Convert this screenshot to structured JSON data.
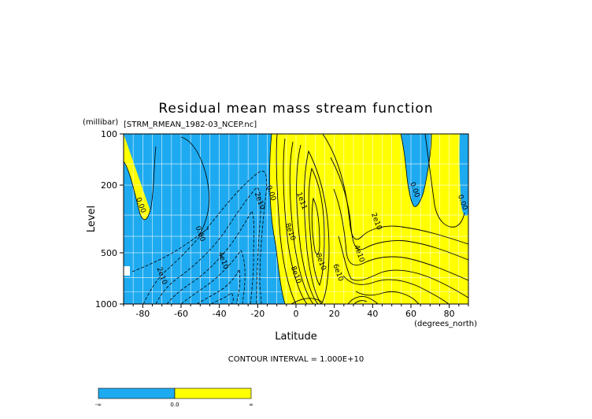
{
  "chart_data": {
    "type": "contour",
    "title": "Residual mean mass stream function",
    "file_label": "[STRM_RMEAN_1982-03_NCEP.nc]",
    "y_units": "(millibar)",
    "x_units": "(degrees_north)",
    "xlabel": "Latitude",
    "ylabel": "Level",
    "xlim": [
      -90,
      90
    ],
    "ylim": [
      1000,
      100
    ],
    "y_scale": "log",
    "x_ticks": [
      -80,
      -60,
      -40,
      -20,
      0,
      20,
      40,
      60,
      80
    ],
    "x_tick_labels": [
      "-80",
      "-60",
      "-40",
      "-20",
      "0",
      "20",
      "40",
      "60",
      "80"
    ],
    "y_ticks": [
      100,
      200,
      500,
      1000
    ],
    "y_tick_labels": [
      "100",
      "200",
      "500",
      "1000"
    ],
    "grid": true,
    "contour_interval_text": "CONTOUR INTERVAL = 1.000E+10",
    "contour_labels": [
      {
        "text": "0.00",
        "lat": -82,
        "lev": 265
      },
      {
        "text": "0.00",
        "lat": -51,
        "lev": 390
      },
      {
        "text": "2e10",
        "lat": -71,
        "lev": 690
      },
      {
        "text": "4e10",
        "lat": -39,
        "lev": 560
      },
      {
        "text": "2e10",
        "lat": -20,
        "lev": 250
      },
      {
        "text": "0.00",
        "lat": -14,
        "lev": 225
      },
      {
        "text": "8e10",
        "lat": -4,
        "lev": 380
      },
      {
        "text": "1e11",
        "lat": 2,
        "lev": 250
      },
      {
        "text": "8e10",
        "lat": -1,
        "lev": 680
      },
      {
        "text": "8e10",
        "lat": 12,
        "lev": 570
      },
      {
        "text": "6e10",
        "lat": 21,
        "lev": 660
      },
      {
        "text": "4e10",
        "lat": 32,
        "lev": 510
      },
      {
        "text": "2e10",
        "lat": 41,
        "lev": 330
      },
      {
        "text": "0.00",
        "lat": 61,
        "lev": 215
      },
      {
        "text": "0.00",
        "lat": 86,
        "lev": 255
      }
    ],
    "legend": {
      "labels": [
        "-∞",
        "0.0",
        "∞"
      ],
      "colors": [
        "#1eaaf0",
        "#ffff00"
      ]
    },
    "colors": {
      "negative": "#1eaaf0",
      "positive": "#ffff00"
    }
  }
}
